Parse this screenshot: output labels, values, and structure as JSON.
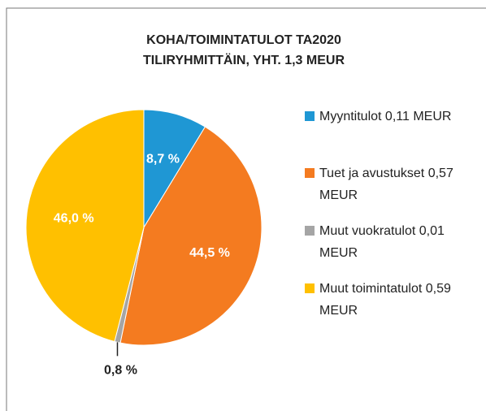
{
  "chart_data": {
    "type": "pie",
    "title": "KOHA/TOIMINTATULOT TA2020",
    "subtitle": "TILIRYHMITTÄIN, YHT.  1,3 MEUR",
    "categories": [
      "Myyntitulot 0,11 MEUR",
      "Tuet ja avustukset 0,57 MEUR",
      "Muut vuokratulot 0,01 MEUR",
      "Muut toimintatulot 0,59 MEUR"
    ],
    "values": [
      8.7,
      44.5,
      0.8,
      46.0
    ],
    "value_labels": [
      "8,7 %",
      "44,5 %",
      "0,8 %",
      "46,0 %"
    ],
    "colors": [
      "#1f97d4",
      "#f47b20",
      "#a5a5a5",
      "#ffc000"
    ],
    "legend": "right"
  }
}
